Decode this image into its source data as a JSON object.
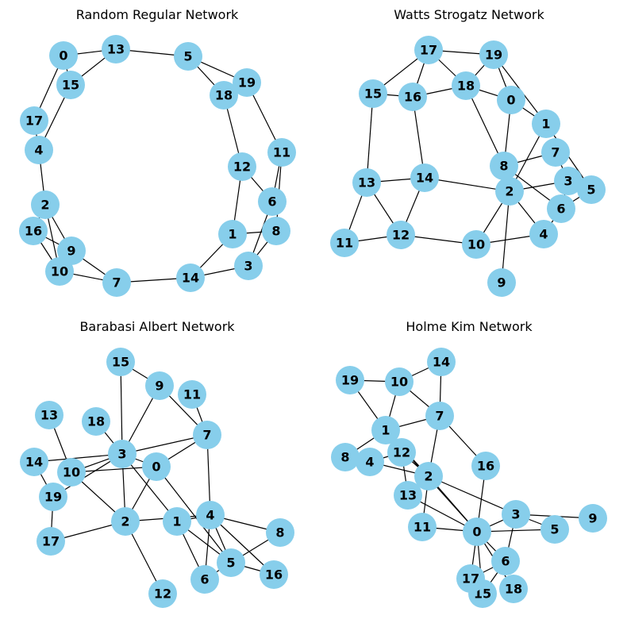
{
  "figure": {
    "node_color": "#87ceeb",
    "edge_color": "#000000",
    "label_color": "#000000"
  },
  "panels": [
    {
      "key": "random_regular",
      "title": "Random Regular Network",
      "nodes": [
        "0",
        "1",
        "2",
        "3",
        "4",
        "5",
        "6",
        "7",
        "8",
        "9",
        "10",
        "11",
        "12",
        "13",
        "14",
        "15",
        "16",
        "17",
        "18",
        "19"
      ],
      "edges": [
        [
          "0",
          "13"
        ],
        [
          "0",
          "15"
        ],
        [
          "0",
          "17"
        ],
        [
          "13",
          "15"
        ],
        [
          "13",
          "5"
        ],
        [
          "5",
          "18"
        ],
        [
          "5",
          "19"
        ],
        [
          "18",
          "19"
        ],
        [
          "18",
          "12"
        ],
        [
          "19",
          "11"
        ],
        [
          "11",
          "6"
        ],
        [
          "11",
          "8"
        ],
        [
          "12",
          "6"
        ],
        [
          "12",
          "1"
        ],
        [
          "1",
          "8"
        ],
        [
          "1",
          "14"
        ],
        [
          "6",
          "3"
        ],
        [
          "8",
          "3"
        ],
        [
          "3",
          "14"
        ],
        [
          "14",
          "7"
        ],
        [
          "7",
          "10"
        ],
        [
          "7",
          "9"
        ],
        [
          "9",
          "10"
        ],
        [
          "9",
          "16"
        ],
        [
          "9",
          "2"
        ],
        [
          "16",
          "10"
        ],
        [
          "16",
          "2"
        ],
        [
          "2",
          "4"
        ],
        [
          "2",
          "10"
        ],
        [
          "4",
          "17"
        ],
        [
          "4",
          "15"
        ]
      ]
    },
    {
      "key": "watts_strogatz",
      "title": "Watts Strogatz Network",
      "nodes": [
        "0",
        "1",
        "2",
        "3",
        "4",
        "5",
        "6",
        "7",
        "8",
        "9",
        "10",
        "11",
        "12",
        "13",
        "14",
        "15",
        "16",
        "17",
        "18",
        "19"
      ],
      "edges": [
        [
          "17",
          "19"
        ],
        [
          "17",
          "15"
        ],
        [
          "17",
          "16"
        ],
        [
          "17",
          "18"
        ],
        [
          "15",
          "16"
        ],
        [
          "15",
          "13"
        ],
        [
          "16",
          "18"
        ],
        [
          "16",
          "14"
        ],
        [
          "18",
          "19"
        ],
        [
          "18",
          "0"
        ],
        [
          "18",
          "8"
        ],
        [
          "19",
          "0"
        ],
        [
          "19",
          "1"
        ],
        [
          "0",
          "1"
        ],
        [
          "0",
          "8"
        ],
        [
          "1",
          "2"
        ],
        [
          "1",
          "5"
        ],
        [
          "7",
          "8"
        ],
        [
          "7",
          "3"
        ],
        [
          "8",
          "6"
        ],
        [
          "8",
          "2"
        ],
        [
          "2",
          "3"
        ],
        [
          "2",
          "14"
        ],
        [
          "2",
          "4"
        ],
        [
          "2",
          "10"
        ],
        [
          "2",
          "9"
        ],
        [
          "3",
          "5"
        ],
        [
          "3",
          "6"
        ],
        [
          "6",
          "5"
        ],
        [
          "6",
          "4"
        ],
        [
          "13",
          "14"
        ],
        [
          "13",
          "11"
        ],
        [
          "13",
          "12"
        ],
        [
          "14",
          "12"
        ],
        [
          "11",
          "12"
        ],
        [
          "12",
          "10"
        ],
        [
          "10",
          "4"
        ]
      ]
    },
    {
      "key": "barabasi_albert",
      "title": "Barabasi Albert Network",
      "nodes": [
        "0",
        "1",
        "2",
        "3",
        "4",
        "5",
        "6",
        "7",
        "8",
        "9",
        "10",
        "11",
        "12",
        "13",
        "14",
        "15",
        "16",
        "17",
        "18",
        "19"
      ],
      "edges": [
        [
          "15",
          "3"
        ],
        [
          "15",
          "9"
        ],
        [
          "9",
          "3"
        ],
        [
          "9",
          "7"
        ],
        [
          "11",
          "7"
        ],
        [
          "13",
          "10"
        ],
        [
          "18",
          "3"
        ],
        [
          "3",
          "14"
        ],
        [
          "3",
          "10"
        ],
        [
          "3",
          "19"
        ],
        [
          "3",
          "0"
        ],
        [
          "3",
          "2"
        ],
        [
          "3",
          "1"
        ],
        [
          "3",
          "7"
        ],
        [
          "0",
          "7"
        ],
        [
          "0",
          "2"
        ],
        [
          "0",
          "5"
        ],
        [
          "10",
          "2"
        ],
        [
          "14",
          "19"
        ],
        [
          "19",
          "17"
        ],
        [
          "2",
          "17"
        ],
        [
          "2",
          "12"
        ],
        [
          "2",
          "4"
        ],
        [
          "1",
          "4"
        ],
        [
          "1",
          "6"
        ],
        [
          "1",
          "5"
        ],
        [
          "7",
          "4"
        ],
        [
          "4",
          "6"
        ],
        [
          "4",
          "5"
        ],
        [
          "4",
          "8"
        ],
        [
          "4",
          "16"
        ],
        [
          "8",
          "5"
        ],
        [
          "5",
          "16"
        ],
        [
          "6",
          "5"
        ],
        [
          "0",
          "10"
        ]
      ]
    },
    {
      "key": "holme_kim",
      "title": "Holme Kim Network",
      "nodes": [
        "0",
        "1",
        "2",
        "3",
        "4",
        "5",
        "6",
        "7",
        "8",
        "9",
        "10",
        "11",
        "12",
        "13",
        "14",
        "15",
        "16",
        "17",
        "18",
        "19"
      ],
      "edges": [
        [
          "19",
          "10"
        ],
        [
          "19",
          "1"
        ],
        [
          "10",
          "14"
        ],
        [
          "10",
          "7"
        ],
        [
          "10",
          "1"
        ],
        [
          "14",
          "7"
        ],
        [
          "7",
          "1"
        ],
        [
          "7",
          "16"
        ],
        [
          "7",
          "2"
        ],
        [
          "1",
          "8"
        ],
        [
          "1",
          "2"
        ],
        [
          "4",
          "2"
        ],
        [
          "4",
          "12"
        ],
        [
          "12",
          "2"
        ],
        [
          "1",
          "12"
        ],
        [
          "12",
          "13"
        ],
        [
          "13",
          "2"
        ],
        [
          "2",
          "11"
        ],
        [
          "2",
          "0"
        ],
        [
          "2",
          "3"
        ],
        [
          "13",
          "0"
        ],
        [
          "11",
          "0"
        ],
        [
          "16",
          "0"
        ],
        [
          "0",
          "3"
        ],
        [
          "0",
          "5"
        ],
        [
          "0",
          "6"
        ],
        [
          "0",
          "17"
        ],
        [
          "0",
          "15"
        ],
        [
          "0",
          "18"
        ],
        [
          "3",
          "9"
        ],
        [
          "3",
          "6"
        ],
        [
          "3",
          "5"
        ],
        [
          "6",
          "17"
        ],
        [
          "6",
          "15"
        ],
        [
          "1",
          "0"
        ]
      ]
    }
  ]
}
